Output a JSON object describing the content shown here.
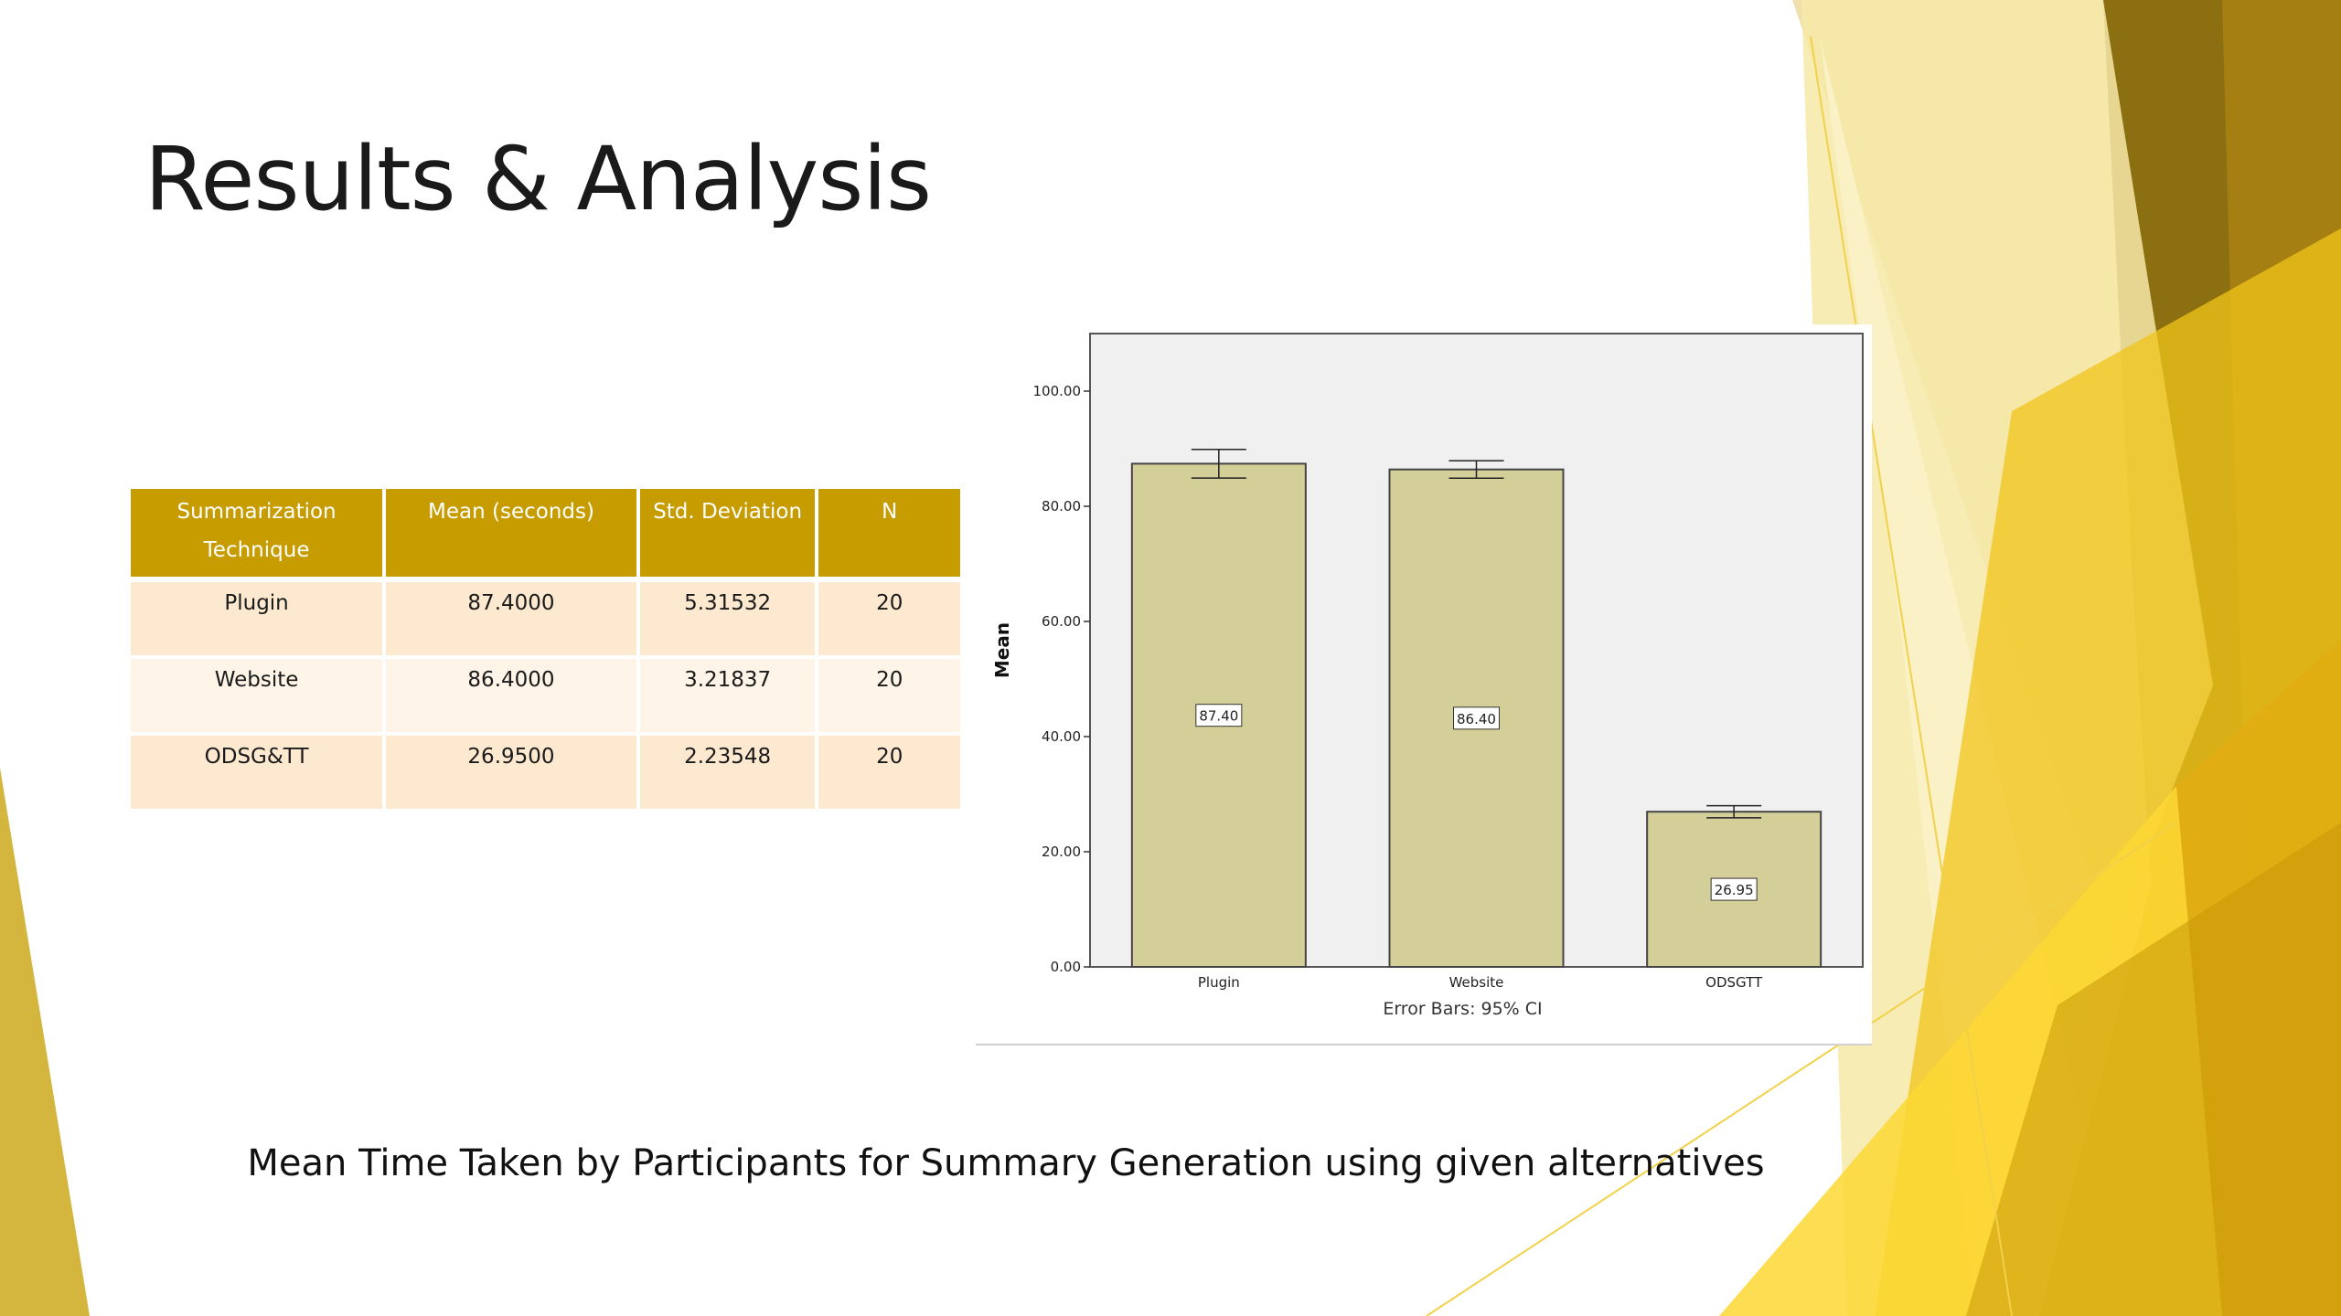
{
  "slide": {
    "title": "Results & Analysis",
    "caption": "Mean Time Taken by Participants for Summary Generation using given alternatives"
  },
  "table": {
    "headers": [
      "Summarization Technique",
      "Mean (seconds)",
      "Std. Deviation",
      "N"
    ],
    "rows": [
      [
        "Plugin",
        "87.4000",
        "5.31532",
        "20"
      ],
      [
        "Website",
        "86.4000",
        "3.21837",
        "20"
      ],
      [
        "ODSG&TT",
        "26.9500",
        "2.23548",
        "20"
      ]
    ]
  },
  "colors": {
    "table_header": "#c69c00",
    "row_odd": "#fde9cf",
    "row_even": "#fef4e8",
    "bar_fill": "#d4cf98",
    "plot_bg": "#f0f0f0"
  },
  "chart_data": {
    "type": "bar",
    "categories": [
      "Plugin",
      "Website",
      "ODSGTT"
    ],
    "values": [
      87.4,
      86.4,
      26.95
    ],
    "data_labels": [
      "87.40",
      "86.40",
      "26.95"
    ],
    "error_bars": [
      [
        84.91,
        89.89
      ],
      [
        84.89,
        87.91
      ],
      [
        25.9,
        28.0
      ]
    ],
    "ylabel": "Mean",
    "xlabel": "",
    "footnote": "Error Bars: 95% CI",
    "ylim": [
      0,
      110
    ],
    "yticks": [
      0,
      20,
      40,
      60,
      80,
      100
    ],
    "ytick_labels": [
      "0.00",
      "20.00",
      "40.00",
      "60.00",
      "80.00",
      "100.00"
    ],
    "grid": false
  }
}
